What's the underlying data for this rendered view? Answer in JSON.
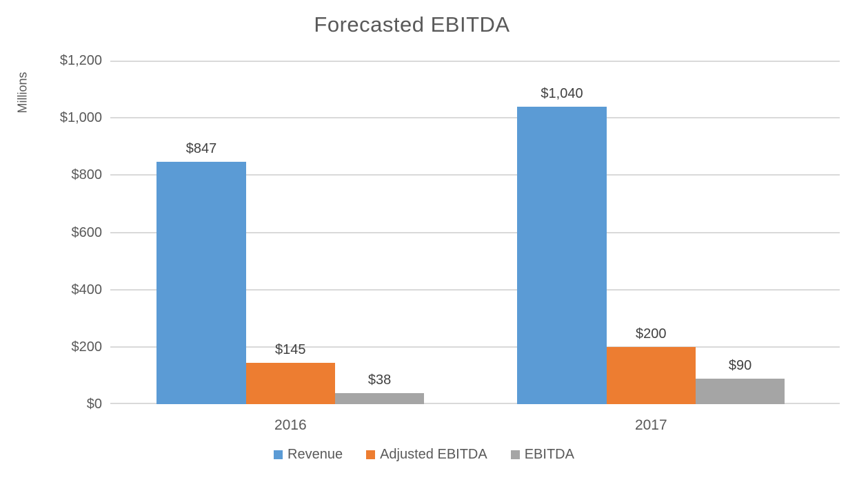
{
  "title": "Forecasted EBITDA",
  "chart_data": {
    "type": "bar",
    "title": "Forecasted EBITDA",
    "xlabel": "",
    "ylabel": "Millions",
    "categories": [
      "2016",
      "2017"
    ],
    "series": [
      {
        "name": "Revenue",
        "color": "#5B9BD5",
        "values": [
          847,
          1040
        ],
        "value_labels": [
          "$847",
          "$1,040"
        ]
      },
      {
        "name": "Adjusted EBITDA",
        "color": "#ED7D31",
        "values": [
          145,
          200
        ],
        "value_labels": [
          "$145",
          "$200"
        ]
      },
      {
        "name": "EBITDA",
        "color": "#A5A5A5",
        "values": [
          38,
          90
        ],
        "value_labels": [
          "$38",
          "$90"
        ]
      }
    ],
    "ylim": [
      0,
      1200
    ],
    "yticks": [
      {
        "value": 0,
        "label": "$0"
      },
      {
        "value": 200,
        "label": "$200"
      },
      {
        "value": 400,
        "label": "$400"
      },
      {
        "value": 600,
        "label": "$600"
      },
      {
        "value": 800,
        "label": "$800"
      },
      {
        "value": 1000,
        "label": "$1,000"
      },
      {
        "value": 1200,
        "label": "$1,200"
      }
    ],
    "grid": true,
    "legend_position": "bottom"
  },
  "colors": {
    "title_text": "#595959",
    "axis_text": "#595959",
    "data_label_text": "#404040",
    "gridline": "#D9D9D9",
    "background": "#FFFFFF"
  }
}
